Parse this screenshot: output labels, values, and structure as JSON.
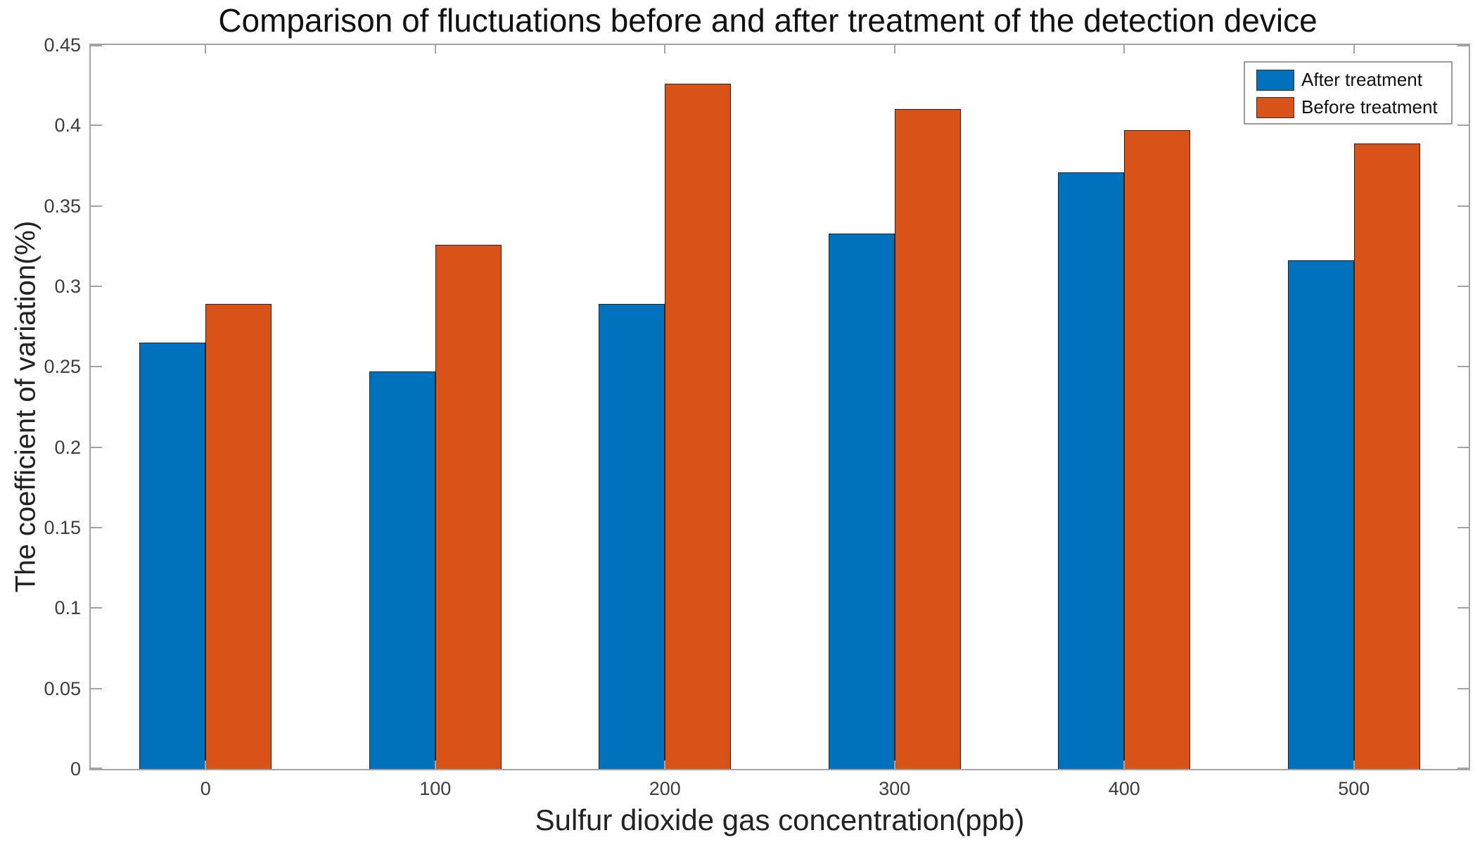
{
  "chart_data": {
    "type": "bar",
    "title": "Comparison of fluctuations before and after treatment of the detection device",
    "xlabel": "Sulfur dioxide gas concentration(ppb)",
    "ylabel": "The coefficient of variation(%)",
    "categories": [
      "0",
      "100",
      "200",
      "300",
      "400",
      "500"
    ],
    "series": [
      {
        "name": "After treatment",
        "color": "#0072BD",
        "values": [
          0.265,
          0.247,
          0.289,
          0.333,
          0.371,
          0.316
        ]
      },
      {
        "name": "Before treatment",
        "color": "#D95319",
        "values": [
          0.289,
          0.326,
          0.426,
          0.41,
          0.397,
          0.389
        ]
      }
    ],
    "ylim": [
      0,
      0.45
    ],
    "ytick_step": 0.05,
    "ytick_labels": [
      "0",
      "0.05",
      "0.1",
      "0.15",
      "0.2",
      "0.25",
      "0.3",
      "0.35",
      "0.4",
      "0.45"
    ],
    "grid": false,
    "legend_position": "top-right",
    "axis_color": "#a3a3a3",
    "bar_edge_color": "#262626",
    "background_color": "#ffffff"
  },
  "legend": {
    "items": [
      {
        "label": "After treatment",
        "color": "#0072BD"
      },
      {
        "label": "Before treatment",
        "color": "#D95319"
      }
    ]
  }
}
